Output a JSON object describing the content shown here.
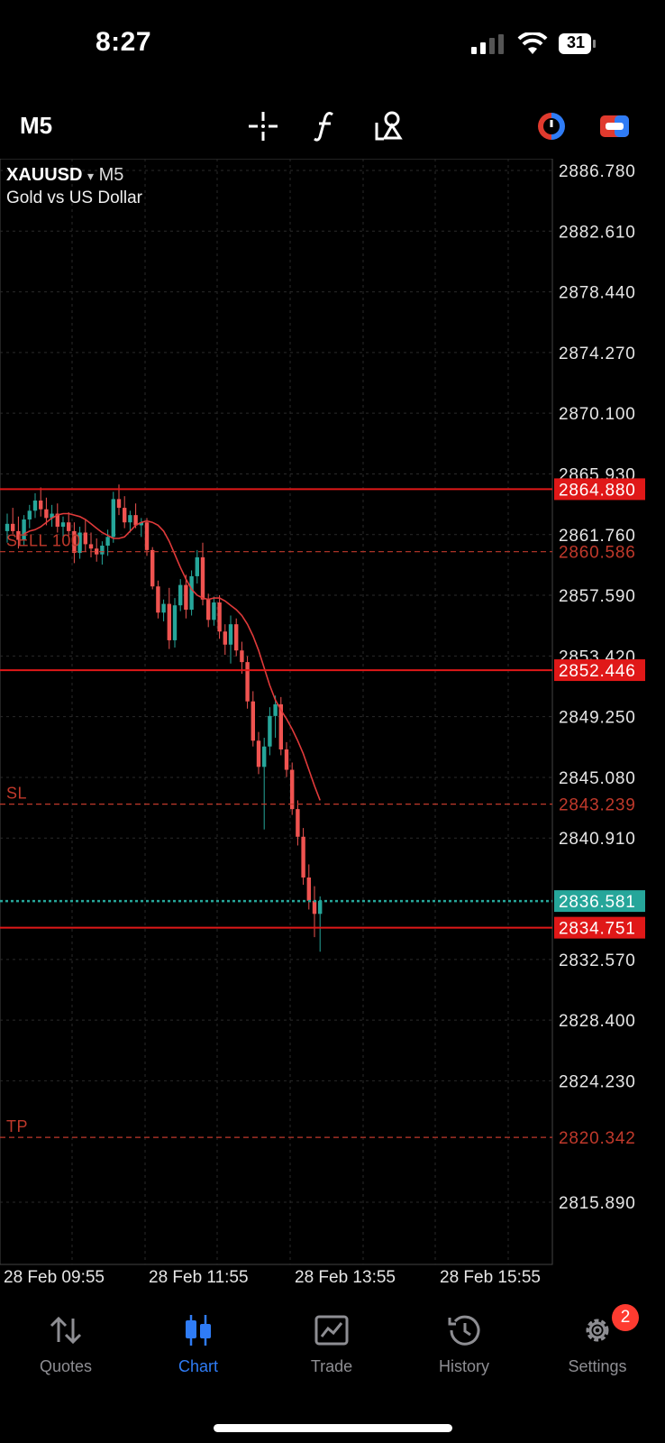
{
  "status": {
    "time": "8:27",
    "battery": "31"
  },
  "toolbar": {
    "timeframe": "M5",
    "icons": [
      "crosshair-icon",
      "function-icon",
      "objects-icon",
      "one-click-trading-icon",
      "toggle-icon"
    ]
  },
  "chart_header": {
    "symbol": "XAUUSD",
    "timeframe": "M5",
    "description": "Gold vs US Dollar",
    "dropdown_glyph": "▾"
  },
  "chart_data": {
    "type": "candlestick",
    "price_axis_labels": [
      "2886.780",
      "2882.610",
      "2878.440",
      "2874.270",
      "2870.100",
      "2865.930",
      "2861.760",
      "2857.590",
      "2853.420",
      "2849.250",
      "2845.080",
      "2840.910",
      "2832.570",
      "2828.400",
      "2824.230",
      "2815.890"
    ],
    "time_axis_labels": [
      "28 Feb 09:55",
      "28 Feb 11:55",
      "28 Feb 13:55",
      "28 Feb 15:55"
    ],
    "levels": [
      {
        "price": 2864.88,
        "label": "2864.880",
        "style": "solid",
        "color": "#e01818"
      },
      {
        "price": 2860.586,
        "label": "2860.586",
        "style": "dashed",
        "color": "#c0392b",
        "tag": "SELL 100"
      },
      {
        "price": 2852.446,
        "label": "2852.446",
        "style": "solid",
        "color": "#e01818"
      },
      {
        "price": 2843.239,
        "label": "2843.239",
        "style": "dashed",
        "color": "#c0392b",
        "tag": "SL"
      },
      {
        "price": 2836.581,
        "label": "2836.581",
        "style": "dotted",
        "color": "#26a69a"
      },
      {
        "price": 2834.751,
        "label": "2834.751",
        "style": "solid",
        "color": "#e01818"
      },
      {
        "price": 2820.342,
        "label": "2820.342",
        "style": "dashed",
        "color": "#c0392b",
        "tag": "TP"
      }
    ],
    "candles_ohlc": [
      [
        2862.0,
        2863.2,
        2861.2,
        2862.5
      ],
      [
        2862.5,
        2863.6,
        2861.8,
        2862.0
      ],
      [
        2862.0,
        2863.0,
        2860.8,
        2861.4
      ],
      [
        2861.4,
        2863.1,
        2861.0,
        2862.8
      ],
      [
        2862.8,
        2863.8,
        2862.2,
        2863.4
      ],
      [
        2863.4,
        2864.6,
        2862.9,
        2864.1
      ],
      [
        2864.1,
        2865.0,
        2863.0,
        2863.5
      ],
      [
        2863.5,
        2864.3,
        2862.4,
        2862.9
      ],
      [
        2862.9,
        2863.8,
        2862.3,
        2863.2
      ],
      [
        2863.2,
        2863.9,
        2861.9,
        2862.3
      ],
      [
        2862.3,
        2863.0,
        2861.5,
        2862.6
      ],
      [
        2862.6,
        2863.3,
        2861.7,
        2862.0
      ],
      [
        2862.0,
        2862.6,
        2859.8,
        2860.5
      ],
      [
        2860.5,
        2862.3,
        2860.1,
        2861.9
      ],
      [
        2861.9,
        2862.8,
        2860.6,
        2861.1
      ],
      [
        2861.1,
        2861.9,
        2860.2,
        2860.8
      ],
      [
        2860.8,
        2861.5,
        2859.9,
        2860.4
      ],
      [
        2860.4,
        2861.3,
        2859.7,
        2861.0
      ],
      [
        2861.0,
        2862.1,
        2860.3,
        2861.6
      ],
      [
        2861.6,
        2864.7,
        2861.2,
        2864.2
      ],
      [
        2864.2,
        2865.2,
        2863.1,
        2863.6
      ],
      [
        2863.6,
        2864.4,
        2862.2,
        2862.6
      ],
      [
        2862.6,
        2863.4,
        2861.9,
        2863.1
      ],
      [
        2863.1,
        2863.9,
        2862.2,
        2862.4
      ],
      [
        2862.4,
        2862.9,
        2861.6,
        2862.6
      ],
      [
        2862.6,
        2862.9,
        2860.3,
        2860.7
      ],
      [
        2860.7,
        2860.9,
        2858.0,
        2858.2
      ],
      [
        2858.2,
        2858.6,
        2856.0,
        2856.4
      ],
      [
        2856.4,
        2857.3,
        2855.8,
        2857.0
      ],
      [
        2857.0,
        2858.1,
        2853.9,
        2854.5
      ],
      [
        2854.5,
        2857.4,
        2854.0,
        2856.9
      ],
      [
        2856.9,
        2858.7,
        2856.5,
        2858.3
      ],
      [
        2858.3,
        2859.0,
        2856.0,
        2856.6
      ],
      [
        2856.6,
        2859.3,
        2856.2,
        2858.9
      ],
      [
        2858.9,
        2860.7,
        2858.4,
        2860.2
      ],
      [
        2860.2,
        2861.2,
        2856.9,
        2857.3
      ],
      [
        2857.3,
        2857.7,
        2855.4,
        2855.9
      ],
      [
        2855.9,
        2857.5,
        2855.5,
        2857.1
      ],
      [
        2857.1,
        2857.6,
        2854.6,
        2855.1
      ],
      [
        2855.1,
        2855.6,
        2853.5,
        2854.2
      ],
      [
        2854.2,
        2856.2,
        2852.9,
        2855.6
      ],
      [
        2855.6,
        2856.0,
        2853.4,
        2853.8
      ],
      [
        2853.8,
        2854.4,
        2852.2,
        2853.0
      ],
      [
        2853.0,
        2853.4,
        2849.8,
        2850.3
      ],
      [
        2850.3,
        2851.0,
        2847.2,
        2847.6
      ],
      [
        2847.6,
        2848.2,
        2845.3,
        2845.8
      ],
      [
        2845.8,
        2847.8,
        2841.5,
        2847.2
      ],
      [
        2847.2,
        2849.9,
        2846.6,
        2849.3
      ],
      [
        2849.3,
        2850.7,
        2847.8,
        2850.1
      ],
      [
        2850.1,
        2850.6,
        2846.6,
        2847.0
      ],
      [
        2847.0,
        2847.5,
        2845.1,
        2845.6
      ],
      [
        2845.6,
        2846.1,
        2842.5,
        2842.9
      ],
      [
        2842.9,
        2843.5,
        2840.4,
        2841.0
      ],
      [
        2841.0,
        2841.6,
        2837.7,
        2838.2
      ],
      [
        2838.2,
        2839.1,
        2836.0,
        2836.6
      ],
      [
        2836.6,
        2837.6,
        2834.1,
        2835.7
      ],
      [
        2835.7,
        2836.9,
        2833.1,
        2836.6
      ]
    ],
    "moving_average": [
      2861.8,
      2862.0,
      2862.1,
      2862.3,
      2862.6,
      2862.9,
      2863.1,
      2863.2,
      2863.2,
      2863.1,
      2863.0,
      2862.8,
      2862.5,
      2862.2,
      2861.9,
      2861.7,
      2861.5,
      2861.5,
      2861.6,
      2862.0,
      2862.4,
      2862.6,
      2862.7,
      2862.6,
      2862.4,
      2862.0,
      2861.3,
      2860.4,
      2859.5,
      2858.7,
      2858.0,
      2857.6,
      2857.4,
      2857.3,
      2857.4,
      2857.4,
      2857.2,
      2856.9,
      2856.6,
      2856.2,
      2855.6,
      2854.8,
      2853.8,
      2852.6,
      2851.4,
      2850.4,
      2849.7,
      2849.1,
      2848.4,
      2847.6,
      2846.7,
      2845.6,
      2844.5,
      2843.5
    ],
    "colors": {
      "bull": "#26a69a",
      "bear": "#ef5350",
      "ma": "#e03a3a",
      "grid": "#2a2a2a",
      "level": "#e01818"
    }
  },
  "tabs": [
    {
      "label": "Quotes",
      "icon": "quotes-arrows-icon",
      "active": false
    },
    {
      "label": "Chart",
      "icon": "chart-candles-icon",
      "active": true
    },
    {
      "label": "Trade",
      "icon": "trade-chart-icon",
      "active": false
    },
    {
      "label": "History",
      "icon": "history-clock-icon",
      "active": false
    },
    {
      "label": "Settings",
      "icon": "settings-gear-icon",
      "active": false,
      "badge": "2"
    }
  ]
}
